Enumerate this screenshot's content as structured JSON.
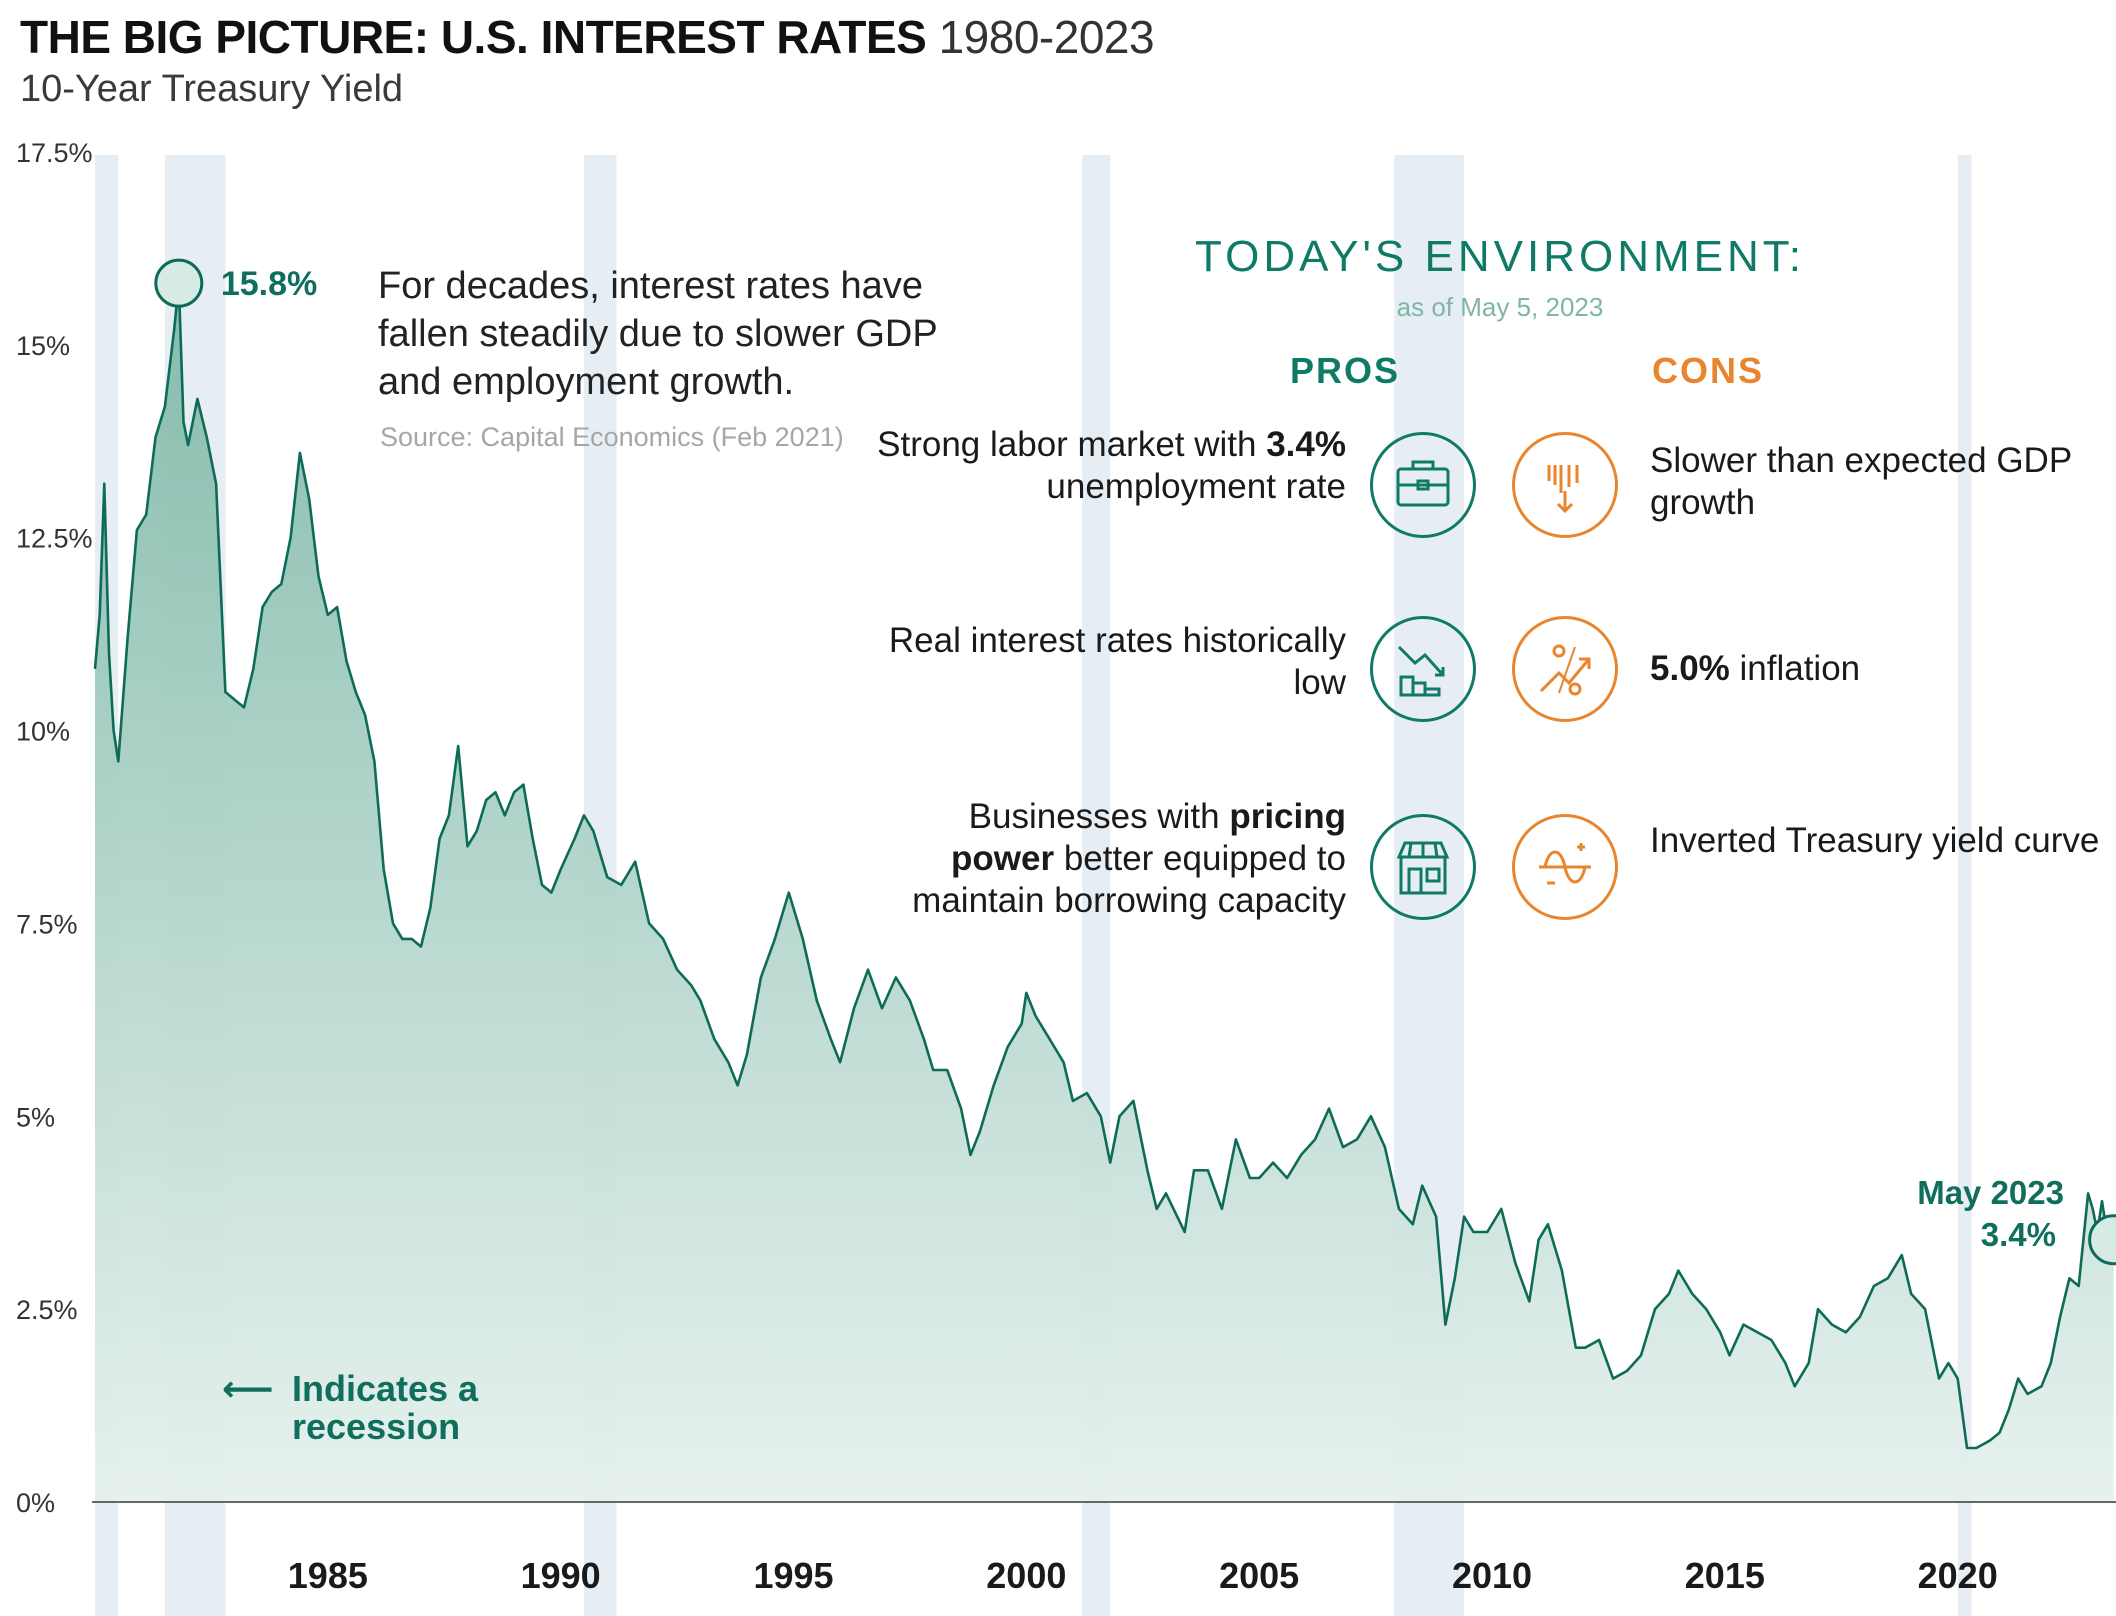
{
  "header": {
    "title": "THE BIG PICTURE: U.S. INTEREST RATES",
    "title_span": "1980-2023",
    "subtitle": "10-Year Treasury Yield"
  },
  "annotations": {
    "note": "For decades, interest rates have fallen steadily due to slower GDP and employment growth.",
    "source": "Source: Capital Economics (Feb 2021)",
    "peak_label": "15.8%",
    "recession_arrow": "⟵",
    "recession_label": "Indicates a recession",
    "latest_label_1": "May 2023",
    "latest_label_2": "3.4%"
  },
  "environment": {
    "title": "TODAY'S ENVIRONMENT:",
    "date": "as of May 5, 2023",
    "pros_heading": "PROS",
    "cons_heading": "CONS",
    "pros": [
      {
        "icon": "briefcase-icon",
        "parts": [
          "Strong labor market with ",
          "3.4%",
          " unemployment rate"
        ]
      },
      {
        "icon": "falling-chart-icon",
        "parts": [
          "Real interest rates historically low",
          "",
          ""
        ]
      },
      {
        "icon": "storefront-icon",
        "parts": [
          "Businesses with ",
          "pricing power",
          " better equipped to maintain borrowing capacity"
        ]
      }
    ],
    "cons": [
      {
        "icon": "declining-bars-icon",
        "parts": [
          "",
          "",
          "Slower than expected GDP growth"
        ]
      },
      {
        "icon": "percent-trend-icon",
        "parts": [
          "",
          "5.0%",
          " inflation"
        ]
      },
      {
        "icon": "inverted-curve-icon",
        "parts": [
          "",
          "",
          "Inverted Treasury yield curve"
        ]
      }
    ]
  },
  "colors": {
    "line": "#0e6b58",
    "area_top": "#7fb9a8",
    "area_bottom": "#e6f1ee",
    "recession_band": "#e7eef3",
    "pros": "#0f7a66",
    "cons": "#e8852e"
  },
  "chart_data": {
    "type": "area",
    "ylim": [
      0,
      17.5
    ],
    "yticks": [
      0,
      2.5,
      5,
      7.5,
      10,
      12.5,
      15,
      17.5
    ],
    "ytick_labels": [
      "0%",
      "2.5%",
      "5%",
      "7.5%",
      "10%",
      "12.5%",
      "15%",
      "17.5%"
    ],
    "xlim": [
      1980.0,
      2023.4
    ],
    "xticks": [
      1985,
      1990,
      1995,
      2000,
      2005,
      2010,
      2015,
      2020
    ],
    "xtick_labels": [
      "1985",
      "1990",
      "1995",
      "2000",
      "2005",
      "2010",
      "2015",
      "2020"
    ],
    "recessions": [
      [
        1980.0,
        1980.5
      ],
      [
        1981.5,
        1982.8
      ],
      [
        1990.5,
        1991.2
      ],
      [
        2001.2,
        2001.8
      ],
      [
        2007.9,
        2009.4
      ],
      [
        2020.0,
        2020.3
      ]
    ],
    "series": [
      {
        "points": [
          [
            1980.0,
            10.8
          ],
          [
            1980.1,
            11.5
          ],
          [
            1980.2,
            13.2
          ],
          [
            1980.3,
            11.0
          ],
          [
            1980.4,
            10.0
          ],
          [
            1980.5,
            9.6
          ],
          [
            1980.7,
            11.2
          ],
          [
            1980.9,
            12.6
          ],
          [
            1981.1,
            12.8
          ],
          [
            1981.3,
            13.8
          ],
          [
            1981.5,
            14.2
          ],
          [
            1981.7,
            15.2
          ],
          [
            1981.8,
            15.8
          ],
          [
            1981.9,
            14.0
          ],
          [
            1982.0,
            13.7
          ],
          [
            1982.2,
            14.3
          ],
          [
            1982.4,
            13.8
          ],
          [
            1982.6,
            13.2
          ],
          [
            1982.8,
            10.5
          ],
          [
            1983.0,
            10.4
          ],
          [
            1983.2,
            10.3
          ],
          [
            1983.4,
            10.8
          ],
          [
            1983.6,
            11.6
          ],
          [
            1983.8,
            11.8
          ],
          [
            1984.0,
            11.9
          ],
          [
            1984.2,
            12.5
          ],
          [
            1984.4,
            13.6
          ],
          [
            1984.6,
            13.0
          ],
          [
            1984.8,
            12.0
          ],
          [
            1985.0,
            11.5
          ],
          [
            1985.2,
            11.6
          ],
          [
            1985.4,
            10.9
          ],
          [
            1985.6,
            10.5
          ],
          [
            1985.8,
            10.2
          ],
          [
            1986.0,
            9.6
          ],
          [
            1986.2,
            8.2
          ],
          [
            1986.4,
            7.5
          ],
          [
            1986.6,
            7.3
          ],
          [
            1986.8,
            7.3
          ],
          [
            1987.0,
            7.2
          ],
          [
            1987.2,
            7.7
          ],
          [
            1987.4,
            8.6
          ],
          [
            1987.6,
            8.9
          ],
          [
            1987.8,
            9.8
          ],
          [
            1988.0,
            8.5
          ],
          [
            1988.2,
            8.7
          ],
          [
            1988.4,
            9.1
          ],
          [
            1988.6,
            9.2
          ],
          [
            1988.8,
            8.9
          ],
          [
            1989.0,
            9.2
          ],
          [
            1989.2,
            9.3
          ],
          [
            1989.4,
            8.6
          ],
          [
            1989.6,
            8.0
          ],
          [
            1989.8,
            7.9
          ],
          [
            1990.0,
            8.2
          ],
          [
            1990.3,
            8.6
          ],
          [
            1990.5,
            8.9
          ],
          [
            1990.7,
            8.7
          ],
          [
            1991.0,
            8.1
          ],
          [
            1991.3,
            8.0
          ],
          [
            1991.6,
            8.3
          ],
          [
            1991.9,
            7.5
          ],
          [
            1992.2,
            7.3
          ],
          [
            1992.5,
            6.9
          ],
          [
            1992.8,
            6.7
          ],
          [
            1993.0,
            6.5
          ],
          [
            1993.3,
            6.0
          ],
          [
            1993.6,
            5.7
          ],
          [
            1993.8,
            5.4
          ],
          [
            1994.0,
            5.8
          ],
          [
            1994.3,
            6.8
          ],
          [
            1994.6,
            7.3
          ],
          [
            1994.9,
            7.9
          ],
          [
            1995.2,
            7.3
          ],
          [
            1995.5,
            6.5
          ],
          [
            1995.8,
            6.0
          ],
          [
            1996.0,
            5.7
          ],
          [
            1996.3,
            6.4
          ],
          [
            1996.6,
            6.9
          ],
          [
            1996.9,
            6.4
          ],
          [
            1997.2,
            6.8
          ],
          [
            1997.5,
            6.5
          ],
          [
            1997.8,
            6.0
          ],
          [
            1998.0,
            5.6
          ],
          [
            1998.3,
            5.6
          ],
          [
            1998.6,
            5.1
          ],
          [
            1998.8,
            4.5
          ],
          [
            1999.0,
            4.8
          ],
          [
            1999.3,
            5.4
          ],
          [
            1999.6,
            5.9
          ],
          [
            1999.9,
            6.2
          ],
          [
            2000.0,
            6.6
          ],
          [
            2000.2,
            6.3
          ],
          [
            2000.5,
            6.0
          ],
          [
            2000.8,
            5.7
          ],
          [
            2001.0,
            5.2
          ],
          [
            2001.3,
            5.3
          ],
          [
            2001.6,
            5.0
          ],
          [
            2001.8,
            4.4
          ],
          [
            2002.0,
            5.0
          ],
          [
            2002.3,
            5.2
          ],
          [
            2002.6,
            4.3
          ],
          [
            2002.8,
            3.8
          ],
          [
            2003.0,
            4.0
          ],
          [
            2003.4,
            3.5
          ],
          [
            2003.6,
            4.3
          ],
          [
            2003.9,
            4.3
          ],
          [
            2004.2,
            3.8
          ],
          [
            2004.5,
            4.7
          ],
          [
            2004.8,
            4.2
          ],
          [
            2005.0,
            4.2
          ],
          [
            2005.3,
            4.4
          ],
          [
            2005.6,
            4.2
          ],
          [
            2005.9,
            4.5
          ],
          [
            2006.2,
            4.7
          ],
          [
            2006.5,
            5.1
          ],
          [
            2006.8,
            4.6
          ],
          [
            2007.1,
            4.7
          ],
          [
            2007.4,
            5.0
          ],
          [
            2007.7,
            4.6
          ],
          [
            2008.0,
            3.8
          ],
          [
            2008.3,
            3.6
          ],
          [
            2008.5,
            4.1
          ],
          [
            2008.8,
            3.7
          ],
          [
            2009.0,
            2.3
          ],
          [
            2009.2,
            2.9
          ],
          [
            2009.4,
            3.7
          ],
          [
            2009.6,
            3.5
          ],
          [
            2009.9,
            3.5
          ],
          [
            2010.2,
            3.8
          ],
          [
            2010.5,
            3.1
          ],
          [
            2010.8,
            2.6
          ],
          [
            2011.0,
            3.4
          ],
          [
            2011.2,
            3.6
          ],
          [
            2011.5,
            3.0
          ],
          [
            2011.8,
            2.0
          ],
          [
            2012.0,
            2.0
          ],
          [
            2012.3,
            2.1
          ],
          [
            2012.6,
            1.6
          ],
          [
            2012.9,
            1.7
          ],
          [
            2013.2,
            1.9
          ],
          [
            2013.5,
            2.5
          ],
          [
            2013.8,
            2.7
          ],
          [
            2014.0,
            3.0
          ],
          [
            2014.3,
            2.7
          ],
          [
            2014.6,
            2.5
          ],
          [
            2014.9,
            2.2
          ],
          [
            2015.1,
            1.9
          ],
          [
            2015.4,
            2.3
          ],
          [
            2015.7,
            2.2
          ],
          [
            2016.0,
            2.1
          ],
          [
            2016.3,
            1.8
          ],
          [
            2016.5,
            1.5
          ],
          [
            2016.8,
            1.8
          ],
          [
            2017.0,
            2.5
          ],
          [
            2017.3,
            2.3
          ],
          [
            2017.6,
            2.2
          ],
          [
            2017.9,
            2.4
          ],
          [
            2018.2,
            2.8
          ],
          [
            2018.5,
            2.9
          ],
          [
            2018.8,
            3.2
          ],
          [
            2019.0,
            2.7
          ],
          [
            2019.3,
            2.5
          ],
          [
            2019.6,
            1.6
          ],
          [
            2019.8,
            1.8
          ],
          [
            2020.0,
            1.6
          ],
          [
            2020.2,
            0.7
          ],
          [
            2020.4,
            0.7
          ],
          [
            2020.7,
            0.8
          ],
          [
            2020.9,
            0.9
          ],
          [
            2021.1,
            1.2
          ],
          [
            2021.3,
            1.6
          ],
          [
            2021.5,
            1.4
          ],
          [
            2021.8,
            1.5
          ],
          [
            2022.0,
            1.8
          ],
          [
            2022.2,
            2.4
          ],
          [
            2022.4,
            2.9
          ],
          [
            2022.6,
            2.8
          ],
          [
            2022.8,
            4.0
          ],
          [
            2022.9,
            3.8
          ],
          [
            2023.0,
            3.5
          ],
          [
            2023.1,
            3.9
          ],
          [
            2023.2,
            3.5
          ],
          [
            2023.35,
            3.4
          ]
        ]
      }
    ]
  }
}
